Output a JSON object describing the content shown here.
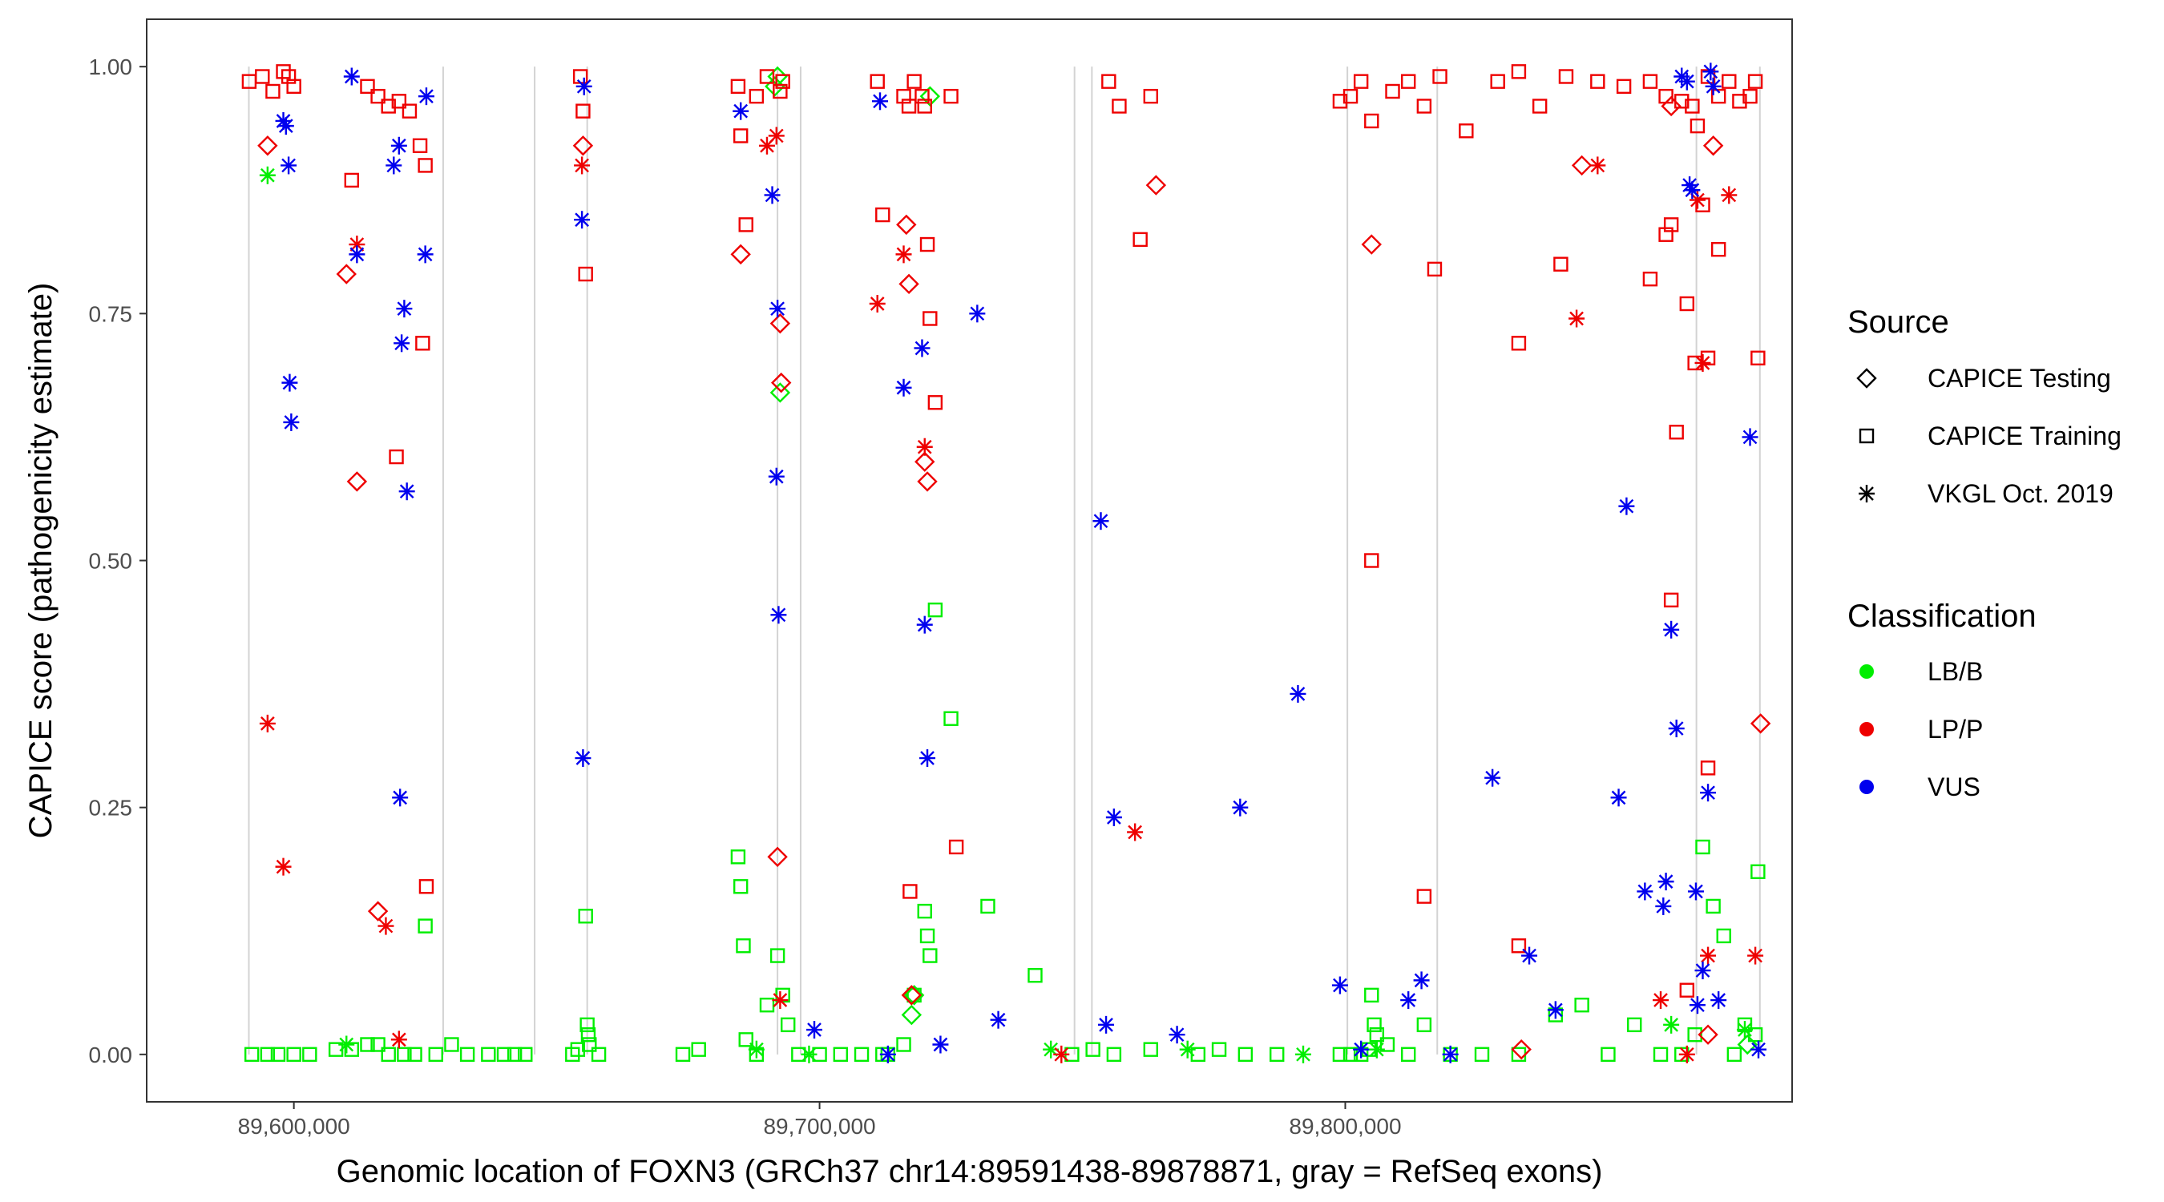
{
  "chart_data": {
    "type": "scatter",
    "xlabel": "Genomic location of FOXN3 (GRCh37 chr14:89591438-89878871, gray = RefSeq exons)",
    "ylabel": "CAPICE score (pathogenicity estimate)",
    "xlim": [
      89572000,
      89885000
    ],
    "ylim": [
      -0.048,
      1.048
    ],
    "x_ticks": [
      89600000,
      89700000,
      89800000
    ],
    "x_tick_labels": [
      "89,600,000",
      "89,700,000",
      "89,800,000"
    ],
    "y_ticks": [
      0,
      0.25,
      0.5,
      0.75,
      1
    ],
    "y_tick_labels": [
      "0.00",
      "0.25",
      "0.50",
      "0.75",
      "1.00"
    ],
    "gridlines": false,
    "exon_lines": [
      89591438,
      89628400,
      89645800,
      89655800,
      89692000,
      89696400,
      89748500,
      89751800,
      89800400,
      89817500,
      89866800,
      89878871
    ],
    "shape_legend": {
      "title": "Source",
      "entries": [
        {
          "label": "CAPICE Testing",
          "shape": "diamond"
        },
        {
          "label": "CAPICE Training",
          "shape": "square"
        },
        {
          "label": "VKGL Oct. 2019",
          "shape": "asterisk"
        }
      ]
    },
    "color_legend": {
      "title": "Classification",
      "entries": [
        {
          "label": "LB/B",
          "color": "#00ee00"
        },
        {
          "label": "LP/P",
          "color": "#ee0000"
        },
        {
          "label": "VUS",
          "color": "#0000ee"
        }
      ]
    },
    "series": [
      {
        "name": "LB/B CAPICE Testing",
        "class": "LB/B",
        "shape": "diamond",
        "x": [
          89692000,
          89691500,
          89721000,
          89692500,
          89718000,
          89876500,
          89717500
        ],
        "y": [
          0.99,
          0.98,
          0.97,
          0.67,
          0.06,
          0.01,
          0.04
        ]
      },
      {
        "name": "LB/B CAPICE Training",
        "class": "LB/B",
        "shape": "square",
        "x": [
          89592000,
          89595000,
          89597000,
          89600000,
          89603000,
          89608000,
          89611000,
          89614000,
          89616000,
          89618000,
          89621000,
          89623000,
          89625000,
          89627000,
          89630000,
          89633000,
          89637000,
          89640000,
          89642000,
          89644000,
          89653000,
          89654000,
          89655500,
          89655800,
          89656000,
          89656200,
          89658000,
          89674000,
          89677000,
          89684500,
          89685000,
          89685500,
          89686000,
          89688000,
          89690000,
          89692000,
          89693000,
          89694000,
          89696000,
          89700000,
          89704000,
          89708000,
          89712000,
          89713000,
          89716000,
          89718000,
          89720000,
          89720500,
          89721000,
          89722000,
          89725000,
          89732000,
          89741000,
          89748000,
          89752000,
          89756000,
          89763000,
          89772000,
          89776000,
          89781000,
          89787000,
          89799000,
          89801000,
          89803000,
          89804500,
          89805000,
          89805500,
          89806000,
          89808000,
          89812000,
          89815000,
          89820000,
          89826000,
          89833000,
          89840000,
          89845000,
          89850000,
          89855000,
          89860000,
          89864000,
          89866500,
          89868000,
          89870000,
          89872000,
          89874000,
          89876000,
          89878000,
          89878500
        ],
        "y": [
          0.0,
          0.0,
          0.0,
          0.0,
          0.0,
          0.005,
          0.005,
          0.01,
          0.01,
          0.0,
          0.0,
          0.0,
          0.13,
          0.0,
          0.01,
          0.0,
          0.0,
          0.0,
          0.0,
          0.0,
          0.0,
          0.005,
          0.14,
          0.03,
          0.02,
          0.01,
          0.0,
          0.0,
          0.005,
          0.2,
          0.17,
          0.11,
          0.015,
          0.0,
          0.05,
          0.1,
          0.06,
          0.03,
          0.0,
          0.0,
          0.0,
          0.0,
          0.0,
          0.0,
          0.01,
          0.06,
          0.145,
          0.12,
          0.1,
          0.45,
          0.34,
          0.15,
          0.08,
          0.0,
          0.005,
          0.0,
          0.005,
          0.0,
          0.005,
          0.0,
          0.0,
          0.0,
          0.0,
          0.0,
          0.005,
          0.06,
          0.03,
          0.02,
          0.01,
          0.0,
          0.03,
          0.0,
          0.0,
          0.0,
          0.04,
          0.05,
          0.0,
          0.03,
          0.0,
          0.0,
          0.02,
          0.21,
          0.15,
          0.12,
          0.0,
          0.03,
          0.02,
          0.185
        ]
      },
      {
        "name": "LB/B VKGL Oct. 2019",
        "class": "LB/B",
        "shape": "asterisk",
        "x": [
          89595000,
          89610000,
          89688000,
          89698000,
          89744000,
          89770000,
          89792000,
          89806000,
          89862000,
          89876000
        ],
        "y": [
          0.89,
          0.01,
          0.005,
          0.0,
          0.005,
          0.005,
          0.0,
          0.005,
          0.03,
          0.025
        ]
      },
      {
        "name": "LP/P CAPICE Testing",
        "class": "LP/P",
        "shape": "diamond",
        "x": [
          89595000,
          89610000,
          89612000,
          89616000,
          89655000,
          89685000,
          89692500,
          89692700,
          89692000,
          89716500,
          89717000,
          89720000,
          89720500,
          89717500,
          89764000,
          89805000,
          89845000,
          89833500,
          89862000,
          89870000,
          89879000,
          89869000
        ],
        "y": [
          0.92,
          0.79,
          0.58,
          0.145,
          0.92,
          0.81,
          0.74,
          0.68,
          0.2,
          0.84,
          0.78,
          0.6,
          0.58,
          0.06,
          0.88,
          0.82,
          0.9,
          0.005,
          0.96,
          0.92,
          0.335,
          0.02
        ]
      },
      {
        "name": "LP/P CAPICE Training",
        "class": "LP/P",
        "shape": "square",
        "x": [
          89591500,
          89594000,
          89596000,
          89598000,
          89599000,
          89600000,
          89611000,
          89614000,
          89616000,
          89618000,
          89620000,
          89622000,
          89624000,
          89625000,
          89619500,
          89624500,
          89625200,
          89654500,
          89655000,
          89655500,
          89684500,
          89685000,
          89686000,
          89688000,
          89690000,
          89692500,
          89693000,
          89711000,
          89712000,
          89716000,
          89717000,
          89718000,
          89719500,
          89720000,
          89720500,
          89721000,
          89722000,
          89725000,
          89726000,
          89717200,
          89755000,
          89757000,
          89763000,
          89761000,
          89799000,
          89801000,
          89803000,
          89805000,
          89809000,
          89812000,
          89815000,
          89818000,
          89823000,
          89829000,
          89833000,
          89837000,
          89842000,
          89848000,
          89853000,
          89858000,
          89861000,
          89864000,
          89866000,
          89867000,
          89869000,
          89871000,
          89873000,
          89875000,
          89877000,
          89878000,
          89805000,
          89817000,
          89833000,
          89841000,
          89858000,
          89861000,
          89862000,
          89865000,
          89866500,
          89868000,
          89871000,
          89863000,
          89869000,
          89878500,
          89862000,
          89815000,
          89869000,
          89865000,
          89833000
        ],
        "y": [
          0.985,
          0.99,
          0.975,
          0.995,
          0.99,
          0.98,
          0.885,
          0.98,
          0.97,
          0.96,
          0.965,
          0.955,
          0.92,
          0.9,
          0.605,
          0.72,
          0.17,
          0.99,
          0.955,
          0.79,
          0.98,
          0.93,
          0.84,
          0.97,
          0.99,
          0.975,
          0.985,
          0.985,
          0.85,
          0.97,
          0.96,
          0.985,
          0.97,
          0.96,
          0.82,
          0.745,
          0.66,
          0.97,
          0.21,
          0.165,
          0.985,
          0.96,
          0.97,
          0.825,
          0.965,
          0.97,
          0.985,
          0.945,
          0.975,
          0.985,
          0.96,
          0.99,
          0.935,
          0.985,
          0.995,
          0.96,
          0.99,
          0.985,
          0.98,
          0.985,
          0.97,
          0.965,
          0.96,
          0.94,
          0.99,
          0.97,
          0.985,
          0.965,
          0.97,
          0.985,
          0.5,
          0.795,
          0.72,
          0.8,
          0.785,
          0.83,
          0.84,
          0.76,
          0.7,
          0.86,
          0.815,
          0.63,
          0.705,
          0.705,
          0.46,
          0.16,
          0.29,
          0.065,
          0.11
        ]
      },
      {
        "name": "LP/P VKGL Oct. 2019",
        "class": "LP/P",
        "shape": "asterisk",
        "x": [
          89595000,
          89598000,
          89612000,
          89617500,
          89620000,
          89654800,
          89690000,
          89691800,
          89692500,
          89711000,
          89716000,
          89720000,
          89746000,
          89760000,
          89844000,
          89848000,
          89860000,
          89867000,
          89873000,
          89868000,
          89869000,
          89878000,
          89865000
        ],
        "y": [
          0.335,
          0.19,
          0.82,
          0.13,
          0.015,
          0.9,
          0.92,
          0.93,
          0.055,
          0.76,
          0.81,
          0.615,
          0.0,
          0.225,
          0.745,
          0.9,
          0.055,
          0.865,
          0.87,
          0.7,
          0.1,
          0.1,
          0.0
        ]
      },
      {
        "name": "VUS VKGL Oct. 2019",
        "class": "VUS",
        "shape": "asterisk",
        "x": [
          89598000,
          89598500,
          89599000,
          89599200,
          89599500,
          89611000,
          89612000,
          89619000,
          89620000,
          89621000,
          89620500,
          89621500,
          89620200,
          89625000,
          89625200,
          89654800,
          89655000,
          89655200,
          89685000,
          89691000,
          89692000,
          89691800,
          89692200,
          89699000,
          89711500,
          89713000,
          89716000,
          89719500,
          89720000,
          89720500,
          89723000,
          89730000,
          89734000,
          89753500,
          89756000,
          89754500,
          89768000,
          89780000,
          89791000,
          89799000,
          89803000,
          89812000,
          89814500,
          89820000,
          89828000,
          89835000,
          89840000,
          89852000,
          89853500,
          89857000,
          89860500,
          89861000,
          89862000,
          89863000,
          89865500,
          89866000,
          89866700,
          89867000,
          89868000,
          89869000,
          89871000,
          89877000,
          89878600,
          89864000,
          89865000,
          89869500,
          89870000
        ],
        "y": [
          0.945,
          0.94,
          0.9,
          0.68,
          0.64,
          0.99,
          0.81,
          0.9,
          0.92,
          0.755,
          0.72,
          0.57,
          0.26,
          0.81,
          0.97,
          0.845,
          0.3,
          0.98,
          0.955,
          0.87,
          0.755,
          0.585,
          0.445,
          0.025,
          0.965,
          0.0,
          0.675,
          0.715,
          0.435,
          0.3,
          0.01,
          0.75,
          0.035,
          0.54,
          0.24,
          0.03,
          0.02,
          0.25,
          0.365,
          0.07,
          0.005,
          0.055,
          0.075,
          0.0,
          0.28,
          0.1,
          0.045,
          0.26,
          0.555,
          0.165,
          0.15,
          0.175,
          0.43,
          0.33,
          0.88,
          0.875,
          0.165,
          0.05,
          0.085,
          0.265,
          0.055,
          0.625,
          0.005,
          0.99,
          0.985,
          0.995,
          0.98
        ]
      }
    ]
  }
}
